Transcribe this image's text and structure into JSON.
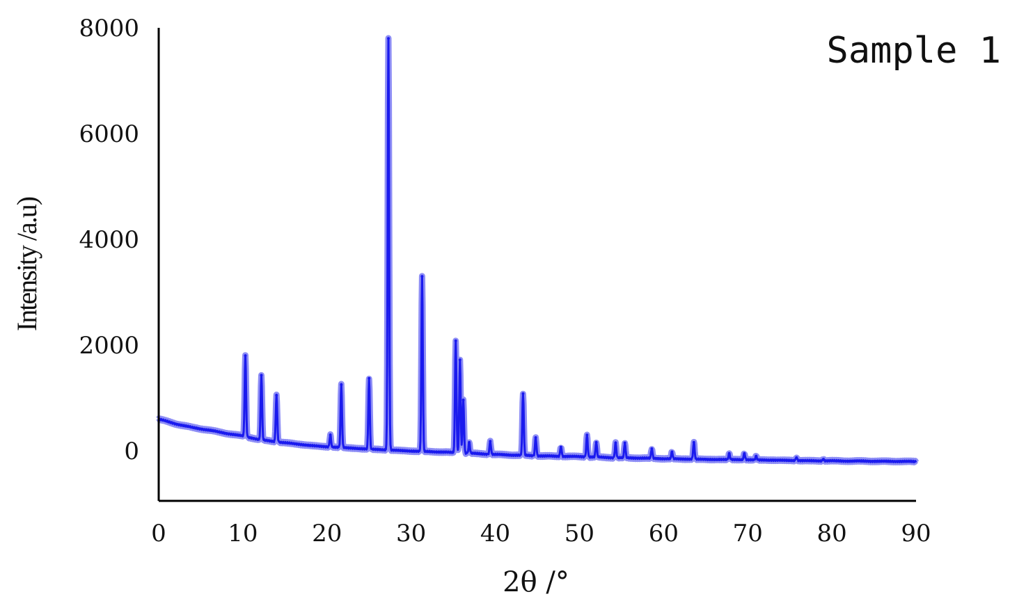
{
  "chart_data": {
    "type": "line",
    "sample_label": "Sample 1",
    "xlabel": "2θ /°",
    "ylabel": "Intensity /a.u)",
    "xlim": [
      0,
      90
    ],
    "ylim": [
      -950,
      8000
    ],
    "x_ticks": [
      0,
      10,
      20,
      30,
      40,
      50,
      60,
      70,
      80,
      90
    ],
    "y_ticks": [
      0,
      2000,
      4000,
      6000,
      8000
    ],
    "grid": false,
    "colors": {
      "line": "#1a1aee",
      "halo": "#8e8ef5",
      "axis": "#000000"
    },
    "background_points": [
      [
        0,
        600
      ],
      [
        2,
        510
      ],
      [
        4,
        440
      ],
      [
        6,
        390
      ],
      [
        8,
        330
      ],
      [
        10,
        280
      ],
      [
        12,
        210
      ],
      [
        14,
        170
      ],
      [
        16,
        135
      ],
      [
        18,
        100
      ],
      [
        20,
        75
      ],
      [
        22,
        60
      ],
      [
        24,
        40
      ],
      [
        26,
        25
      ],
      [
        28,
        10
      ],
      [
        30,
        -5
      ],
      [
        32,
        -15
      ],
      [
        34,
        -25
      ],
      [
        36,
        -40
      ],
      [
        38,
        -55
      ],
      [
        40,
        -70
      ],
      [
        42,
        -80
      ],
      [
        44,
        -90
      ],
      [
        46,
        -100
      ],
      [
        48,
        -105
      ],
      [
        50,
        -110
      ],
      [
        52,
        -120
      ],
      [
        54,
        -130
      ],
      [
        56,
        -135
      ],
      [
        58,
        -140
      ],
      [
        60,
        -150
      ],
      [
        62,
        -155
      ],
      [
        64,
        -160
      ],
      [
        66,
        -165
      ],
      [
        68,
        -165
      ],
      [
        70,
        -170
      ],
      [
        72,
        -175
      ],
      [
        74,
        -180
      ],
      [
        76,
        -185
      ],
      [
        78,
        -190
      ],
      [
        80,
        -190
      ],
      [
        82,
        -195
      ],
      [
        84,
        -195
      ],
      [
        86,
        -200
      ],
      [
        88,
        -200
      ],
      [
        90,
        -205
      ]
    ],
    "peaks": [
      {
        "x": 10.3,
        "y": 1800
      },
      {
        "x": 12.2,
        "y": 1430
      },
      {
        "x": 14.0,
        "y": 1050
      },
      {
        "x": 20.4,
        "y": 300
      },
      {
        "x": 21.7,
        "y": 1250
      },
      {
        "x": 25.0,
        "y": 1370
      },
      {
        "x": 27.3,
        "y": 7800
      },
      {
        "x": 31.3,
        "y": 3300
      },
      {
        "x": 35.3,
        "y": 2080
      },
      {
        "x": 35.8,
        "y": 1720
      },
      {
        "x": 36.2,
        "y": 960
      },
      {
        "x": 36.9,
        "y": 160
      },
      {
        "x": 39.4,
        "y": 180
      },
      {
        "x": 43.3,
        "y": 1080
      },
      {
        "x": 44.8,
        "y": 250
      },
      {
        "x": 47.8,
        "y": 70
      },
      {
        "x": 50.9,
        "y": 300
      },
      {
        "x": 52.0,
        "y": 160
      },
      {
        "x": 54.3,
        "y": 150
      },
      {
        "x": 55.4,
        "y": 150
      },
      {
        "x": 58.6,
        "y": 40
      },
      {
        "x": 61.0,
        "y": -20
      },
      {
        "x": 63.6,
        "y": 160
      },
      {
        "x": 67.8,
        "y": -50
      },
      {
        "x": 69.6,
        "y": -50
      },
      {
        "x": 71.0,
        "y": -100
      },
      {
        "x": 75.8,
        "y": -130
      },
      {
        "x": 79.0,
        "y": -160
      }
    ]
  }
}
